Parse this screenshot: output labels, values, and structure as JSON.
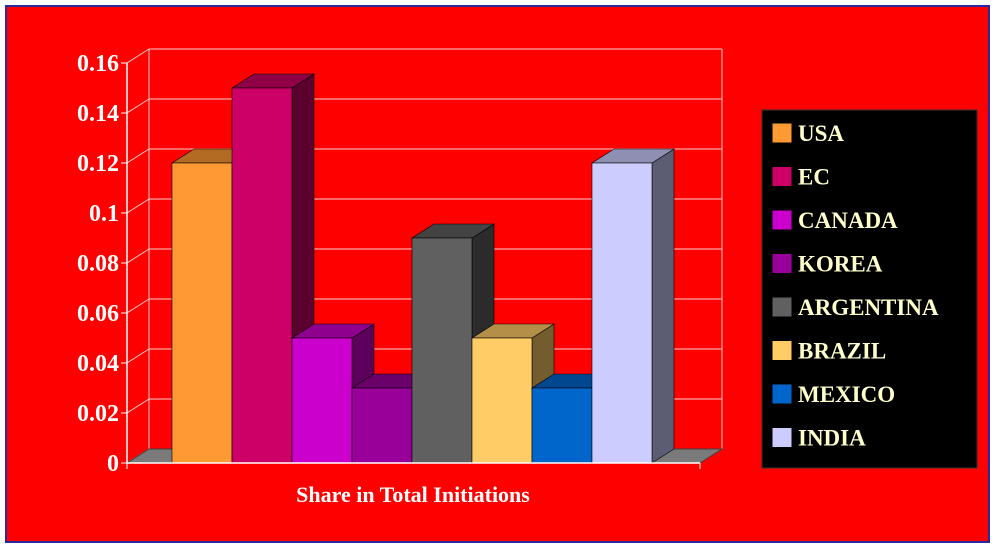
{
  "chart_data": {
    "type": "bar",
    "xlabel": "Share in Total Initiations",
    "ylabel": "",
    "ylim": [
      0,
      0.16
    ],
    "yticks": [
      "0",
      "0.02",
      "0.04",
      "0.06",
      "0.08",
      "0.1",
      "0.12",
      "0.14",
      "0.16"
    ],
    "categories": [
      "USA",
      "EC",
      "CANADA",
      "KOREA",
      "ARGENTINA",
      "BRAZIL",
      "MEXICO",
      "INDIA"
    ],
    "series": [
      {
        "name": "USA",
        "value": 0.12,
        "color": "#ff9933"
      },
      {
        "name": "EC",
        "value": 0.15,
        "color": "#cc0066"
      },
      {
        "name": "CANADA",
        "value": 0.05,
        "color": "#cc00cc"
      },
      {
        "name": "KOREA",
        "value": 0.03,
        "color": "#990099"
      },
      {
        "name": "ARGENTINA",
        "value": 0.09,
        "color": "#606060"
      },
      {
        "name": "BRAZIL",
        "value": 0.05,
        "color": "#ffcc66"
      },
      {
        "name": "MEXICO",
        "value": 0.03,
        "color": "#0066cc"
      },
      {
        "name": "INDIA",
        "value": 0.12,
        "color": "#ccccff"
      }
    ],
    "style": "3d",
    "grid": true,
    "legend_position": "right",
    "colors": {
      "background": "#ff0000",
      "legend_background": "#000000",
      "gridline": "#ffcccc"
    }
  }
}
